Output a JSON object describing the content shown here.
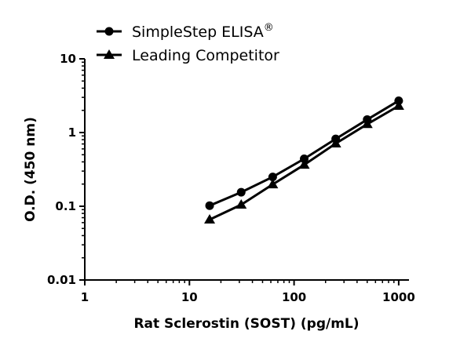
{
  "chart_data": {
    "type": "line",
    "xlabel": "Rat Sclerostin (SOST) (pg/mL)",
    "ylabel": "O.D. (450 nm)",
    "xscale": "log",
    "yscale": "log",
    "xlim": [
      1,
      1000
    ],
    "ylim": [
      0.01,
      10
    ],
    "xticks": [
      "1",
      "10",
      "100",
      "1000"
    ],
    "yticks": [
      "0.01",
      "0.1",
      "1",
      "10"
    ],
    "grid": false,
    "legend_position": "top-left",
    "x": [
      15.6,
      31.25,
      62.5,
      125,
      250,
      500,
      1000
    ],
    "series": [
      {
        "name": "SimpleStep ELISA",
        "name_suffix": "®",
        "marker": "circle",
        "values": [
          0.102,
          0.155,
          0.25,
          0.44,
          0.82,
          1.5,
          2.7
        ]
      },
      {
        "name": "Leading Competitor",
        "marker": "triangle",
        "values": [
          0.066,
          0.105,
          0.198,
          0.365,
          0.71,
          1.3,
          2.3
        ]
      }
    ],
    "color": "#000000"
  }
}
